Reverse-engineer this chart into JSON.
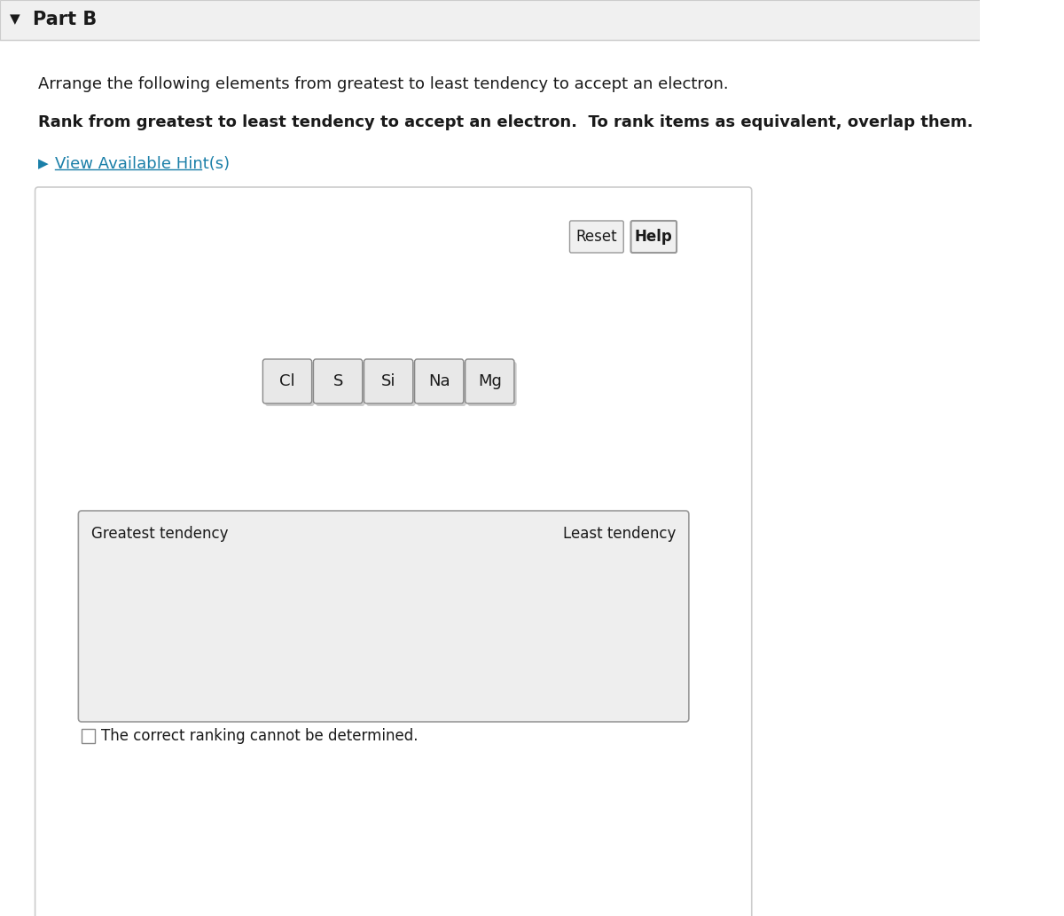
{
  "title": "Part B",
  "title_arrow": "▼",
  "subtitle": "Arrange the following elements from greatest to least tendency to accept an electron.",
  "bold_text": "Rank from greatest to least tendency to accept an electron.  To rank items as equivalent, overlap them.",
  "hint_text": "View Available Hint(s)",
  "elements": [
    "Cl",
    "S",
    "Si",
    "Na",
    "Mg"
  ],
  "reset_label": "Reset",
  "help_label": "Help",
  "greatest_label": "Greatest tendency",
  "least_label": "Least tendency",
  "checkbox_text": "The correct ranking cannot be determined.",
  "bg_color": "#ffffff",
  "panel_bg": "#f5f5f5",
  "panel_border": "#cccccc",
  "header_bg": "#f0f0f0",
  "header_border": "#cccccc",
  "hint_color": "#1a7fa8",
  "title_color": "#1a1a1a",
  "text_color": "#1a1a1a",
  "button_bg": "#f0f0f0",
  "button_border": "#999999",
  "element_btn_bg": "#e8e8e8",
  "element_btn_border": "#888888",
  "element_btn_shadow": "#aaaaaa",
  "ranking_box_bg": "#eeeeee",
  "ranking_box_border": "#999999"
}
